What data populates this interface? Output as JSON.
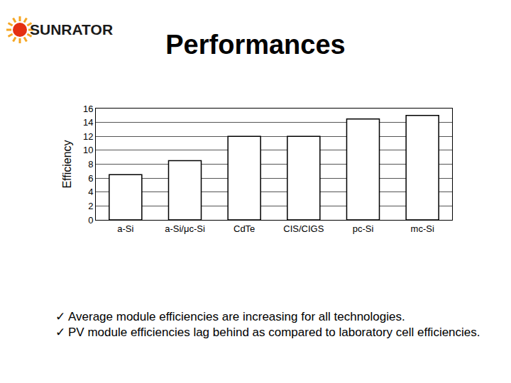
{
  "logo": "SUNRATOR",
  "bullet_mark": "✓",
  "bullets": [
    "Average module efficiencies are increasing for all technologies.",
    "PV module efficiencies lag behind as compared to laboratory cell efficiencies."
  ],
  "chart_data": {
    "type": "bar",
    "title": "Performances",
    "y_label": "Efficiency",
    "categories": [
      "a-Si",
      "a-Si/μc-Si",
      "CdTe",
      "CIS/CIGS",
      "pc-Si",
      "mc-Si"
    ],
    "values": [
      6.5,
      8.5,
      12,
      12,
      14.5,
      15
    ],
    "color": "#ffffff",
    "ylim": [
      0,
      16
    ],
    "yticks": [
      0,
      2,
      4,
      6,
      8,
      10,
      12,
      14,
      16
    ],
    "grid": true
  }
}
